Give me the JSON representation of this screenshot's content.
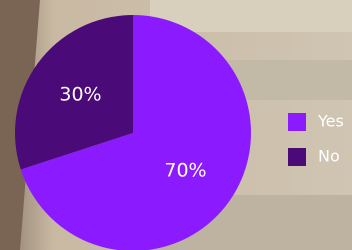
{
  "chart_data": {
    "type": "pie",
    "categories": [
      "Yes",
      "No"
    ],
    "values": [
      70,
      30
    ],
    "value_labels": [
      "70%",
      "30%"
    ],
    "colors": [
      "#8b1aff",
      "#4a0a78"
    ],
    "legend": "right"
  }
}
